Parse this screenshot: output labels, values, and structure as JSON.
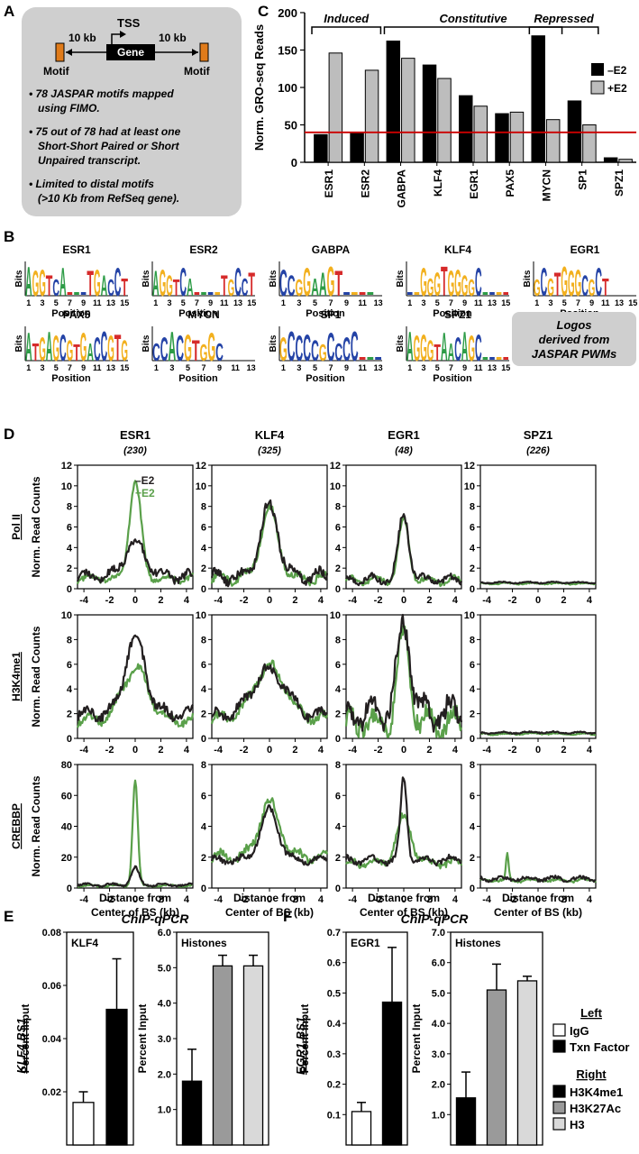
{
  "panels": {
    "A": {
      "letter": "A",
      "diagram": {
        "tss": "TSS",
        "gene": "Gene",
        "left_dist": "10 kb",
        "right_dist": "10 kb",
        "motif_left": "Motif",
        "motif_right": "Motif"
      },
      "bullets": [
        [
          "• 78 JASPAR motifs mapped",
          "using FIMO."
        ],
        [
          "• 75 out of 78 had at least one",
          "Short-Short Paired or Short",
          "Unpaired transcript."
        ],
        [
          "• Limited to distal motifs",
          "(>10 Kb from RefSeq gene)."
        ]
      ]
    },
    "B": {
      "letter": "B",
      "ylabel": "Bits",
      "xlabel": "Position",
      "note": [
        "Logos",
        "derived from",
        "JASPAR PWMs"
      ],
      "logos": [
        {
          "name": "ESR1",
          "letters": "AGGTCAnnnTGACCT",
          "ticks": [
            "1",
            "3",
            "5",
            "7",
            "9",
            "11",
            "13",
            "15"
          ],
          "width": 15
        },
        {
          "name": "ESR2",
          "letters": "AGGTCAnnnnTGCCT",
          "ticks": [
            "1",
            "3",
            "5",
            "7",
            "9",
            "11",
            "13",
            "15"
          ],
          "width": 15
        },
        {
          "name": "GABPA",
          "letters": "CCGGAAGTnnnn",
          "ticks": [
            "1",
            "3",
            "5",
            "7",
            "9",
            "11",
            "13"
          ],
          "width": 13
        },
        {
          "name": "KLF4",
          "letters": "nnGGGTGGGGCnnnn",
          "ticks": [
            "1",
            "3",
            "5",
            "7",
            "9",
            "11",
            "13",
            "15"
          ],
          "width": 15
        },
        {
          "name": "EGR1",
          "letters": "GCGTGGGCGCT",
          "ticks": [
            "1",
            "3",
            "5",
            "7",
            "9",
            "11",
            "13",
            "15"
          ],
          "width": 15
        },
        {
          "name": "PAX5",
          "letters": "ATGAGCGTGACCGTG",
          "ticks": [
            "1",
            "3",
            "5",
            "7",
            "9",
            "11",
            "13",
            "15"
          ],
          "width": 15
        },
        {
          "name": "MYCN",
          "letters": "CCACGTGGC",
          "ticks": [
            "1",
            "3",
            "5",
            "7",
            "9",
            "11",
            "13"
          ],
          "width": 13
        },
        {
          "name": "SP1",
          "letters": "GCCCCGCCCCnnn",
          "ticks": [
            "1",
            "3",
            "5",
            "7",
            "9",
            "11",
            "13"
          ],
          "width": 13
        },
        {
          "name": "SPZ1",
          "letters": "AGGGTAACAGCnnnn",
          "ticks": [
            "1",
            "3",
            "5",
            "7",
            "9",
            "11",
            "13",
            "15"
          ],
          "width": 15
        }
      ]
    },
    "C": {
      "letter": "C"
    },
    "D": {
      "letter": "D",
      "columns": [
        {
          "name": "ESR1",
          "count": "(230)"
        },
        {
          "name": "KLF4",
          "count": "(325)"
        },
        {
          "name": "EGR1",
          "count": "(48)"
        },
        {
          "name": "SPZ1",
          "count": "(226)"
        }
      ],
      "rows": [
        "Pol II",
        "H3K4me1",
        "CREBBP"
      ],
      "ylabel": "Norm. Read Counts",
      "xlabel": [
        "Distance from",
        "Center of BS (kb)"
      ],
      "legend": [
        "–E2",
        "+E2"
      ]
    },
    "E": {
      "letter": "E",
      "title": "ChIP-qPCR",
      "rowlabel": "KLF4 BS1"
    },
    "F": {
      "letter": "F",
      "title": "ChIP-qPCR",
      "rowlabel": "EGR1 BS1"
    },
    "legend_EF": {
      "left_title": "Left",
      "left_items": [
        "IgG",
        "Txn Factor"
      ],
      "right_title": "Right",
      "right_items": [
        "H3K4me1",
        "H3K27Ac",
        "H3"
      ]
    }
  },
  "colors": {
    "minus_e2": "#231f20",
    "plus_e2": "#5aa04a",
    "bar_black": "#000000",
    "bar_gray": "#9a9a9a",
    "bar_lightgray": "#d9d9d9",
    "bar_panelC_gray": "#bdbdbd",
    "box_gray": "#cfcfcf",
    "threshold_line": "#cc0000",
    "logo_A": "#2e9c47",
    "logo_C": "#2443a6",
    "logo_G": "#f2b01e",
    "logo_T": "#d62a2a"
  },
  "chart_data": [
    {
      "id": "C",
      "type": "bar",
      "ylabel": "Norm. GRO-seq Reads",
      "categories": [
        "ESR1",
        "ESR2",
        "GABPA",
        "KLF4",
        "EGR1",
        "PAX5",
        "MYCN",
        "SP1",
        "SPZ1"
      ],
      "series": [
        {
          "name": "–E2",
          "values": [
            37,
            39,
            162,
            130,
            89,
            65,
            169,
            82,
            6
          ]
        },
        {
          "name": "+E2",
          "values": [
            146,
            123,
            139,
            112,
            75,
            67,
            57,
            50,
            4
          ]
        }
      ],
      "ylim": [
        0,
        200
      ],
      "yticks": [
        "0",
        "50",
        "100",
        "150",
        "200"
      ],
      "threshold": 40,
      "groups": [
        {
          "label": "Induced",
          "from": 0,
          "to": 1
        },
        {
          "label": "Constitutive",
          "from": 2,
          "to": 6
        },
        {
          "label": "Repressed",
          "from": 6,
          "to": 7
        }
      ],
      "legend": "right"
    },
    {
      "id": "D",
      "type": "line",
      "x_range": [
        -4.5,
        4.5
      ],
      "xticks": [
        "-4",
        "-2",
        "0",
        "2",
        "4"
      ],
      "series_names": [
        "–E2",
        "+E2"
      ],
      "rows": [
        {
          "name": "Pol II",
          "ylim": [
            0,
            12
          ],
          "yticks": [
            "0",
            "2",
            "4",
            "6",
            "8",
            "10",
            "12"
          ],
          "cells": [
            {
              "minus": {
                "base": 1.2,
                "peak": 4.5,
                "width": 0.8,
                "wiggle": 0.7
              },
              "plus": {
                "base": 1.0,
                "peak": 10.4,
                "width": 0.45,
                "wiggle": 0.5
              }
            },
            {
              "minus": {
                "base": 1.2,
                "peak": 8.0,
                "width": 0.7,
                "wiggle": 0.9
              },
              "plus": {
                "base": 1.0,
                "peak": 7.6,
                "width": 0.7,
                "wiggle": 0.7
              }
            },
            {
              "minus": {
                "base": 0.9,
                "peak": 7.2,
                "width": 0.4,
                "wiggle": 0.6
              },
              "plus": {
                "base": 0.8,
                "peak": 6.6,
                "width": 0.4,
                "wiggle": 0.5
              }
            },
            {
              "minus": {
                "base": 0.6,
                "peak": 0.6,
                "width": 1.0,
                "wiggle": 0.1
              },
              "plus": {
                "base": 0.5,
                "peak": 0.5,
                "width": 1.0,
                "wiggle": 0.1
              }
            }
          ]
        },
        {
          "name": "H3K4me1",
          "ylim": [
            0,
            10
          ],
          "yticks": [
            "0",
            "2",
            "4",
            "6",
            "8",
            "10"
          ],
          "cells": [
            {
              "minus": {
                "base": 2.0,
                "peak": 8.2,
                "width": 0.8,
                "wiggle": 0.8
              },
              "plus": {
                "base": 1.5,
                "peak": 5.6,
                "width": 1.0,
                "wiggle": 0.6
              }
            },
            {
              "minus": {
                "base": 1.8,
                "peak": 5.5,
                "width": 1.3,
                "wiggle": 0.7
              },
              "plus": {
                "base": 1.6,
                "peak": 5.8,
                "width": 1.2,
                "wiggle": 0.6
              }
            },
            {
              "minus": {
                "base": 2.0,
                "peak": 9.3,
                "width": 0.5,
                "wiggle": 1.6
              },
              "plus": {
                "base": 1.2,
                "peak": 8.0,
                "width": 0.5,
                "wiggle": 1.6
              }
            },
            {
              "minus": {
                "base": 0.45,
                "peak": 0.5,
                "width": 1.0,
                "wiggle": 0.1
              },
              "plus": {
                "base": 0.35,
                "peak": 0.4,
                "width": 1.0,
                "wiggle": 0.1
              }
            }
          ]
        },
        {
          "name": "CREBBP",
          "ylim_cells": [
            [
              0,
              80
            ],
            [
              0,
              8
            ],
            [
              0,
              8
            ],
            [
              0,
              8
            ]
          ],
          "yticks_cells": [
            [
              "0",
              "20",
              "40",
              "60",
              "80"
            ],
            [
              "0",
              "2",
              "4",
              "6",
              "8"
            ],
            [
              "0",
              "2",
              "4",
              "6",
              "8"
            ],
            [
              "0",
              "2",
              "4",
              "6",
              "8"
            ]
          ],
          "cells": [
            {
              "minus": {
                "base": 2.0,
                "peak": 13,
                "width": 0.3,
                "wiggle": 1.2
              },
              "plus": {
                "base": 1.5,
                "peak": 70,
                "width": 0.2,
                "wiggle": 1.0
              }
            },
            {
              "minus": {
                "base": 1.8,
                "peak": 5.0,
                "width": 0.7,
                "wiggle": 0.35
              },
              "plus": {
                "base": 2.0,
                "peak": 5.5,
                "width": 0.8,
                "wiggle": 0.5
              }
            },
            {
              "minus": {
                "base": 1.8,
                "peak": 7.2,
                "width": 0.25,
                "wiggle": 0.35
              },
              "plus": {
                "base": 1.6,
                "peak": 4.5,
                "width": 0.6,
                "wiggle": 0.4
              }
            },
            {
              "minus": {
                "base": 0.6,
                "peak": 0.6,
                "width": 1.0,
                "wiggle": 0.2
              },
              "plus": {
                "base": 0.5,
                "peak": 0.5,
                "width": 1.0,
                "wiggle": 0.15,
                "spike_x": -2.4,
                "spike": 2.2
              }
            }
          ]
        }
      ]
    },
    {
      "id": "E-left",
      "type": "bar",
      "title": "KLF4",
      "ylabel": "Percent Input",
      "categories": [
        "IgG",
        "Txn Factor"
      ],
      "values": [
        0.016,
        0.051
      ],
      "errors": [
        0.004,
        0.019
      ],
      "ylim": [
        0,
        0.08
      ],
      "yticks": [
        "0.02",
        "0.04",
        "0.06",
        "0.08"
      ]
    },
    {
      "id": "E-right",
      "type": "bar",
      "title": "Histones",
      "ylabel": "Percent Input",
      "categories": [
        "H3K4me1",
        "H3K27Ac",
        "H3"
      ],
      "values": [
        1.8,
        5.05,
        5.05
      ],
      "errors": [
        0.9,
        0.3,
        0.3
      ],
      "ylim": [
        0,
        6.0
      ],
      "yticks": [
        "1.0",
        "2.0",
        "3.0",
        "4.0",
        "5.0",
        "6.0"
      ]
    },
    {
      "id": "F-left",
      "type": "bar",
      "title": "EGR1",
      "ylabel": "Percent Input",
      "categories": [
        "IgG",
        "Txn Factor"
      ],
      "values": [
        0.11,
        0.47
      ],
      "errors": [
        0.03,
        0.18
      ],
      "ylim": [
        0,
        0.7
      ],
      "yticks": [
        "0.1",
        "0.2",
        "0.3",
        "0.4",
        "0.5",
        "0.6",
        "0.7"
      ]
    },
    {
      "id": "F-right",
      "type": "bar",
      "title": "Histones",
      "ylabel": "Percent Input",
      "categories": [
        "H3K4me1",
        "H3K27Ac",
        "H3"
      ],
      "values": [
        1.55,
        5.1,
        5.4
      ],
      "errors": [
        0.85,
        0.85,
        0.15
      ],
      "ylim": [
        0,
        7.0
      ],
      "yticks": [
        "1.0",
        "2.0",
        "3.0",
        "4.0",
        "5.0",
        "6.0",
        "7.0"
      ]
    }
  ]
}
